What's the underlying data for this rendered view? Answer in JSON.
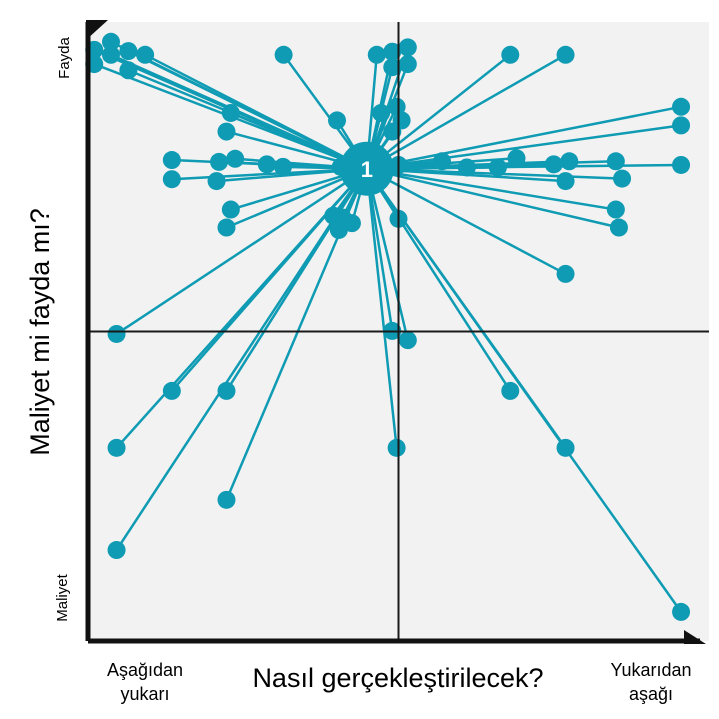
{
  "chart_data": {
    "type": "scatter",
    "title": "",
    "xlabel": "Nasıl gerçekleştirilecek?",
    "ylabel": "Maliyet mi fayda mı?",
    "x_axis_ends": {
      "low": [
        "Aşağıdan",
        "yukarı"
      ],
      "high": [
        "Yukarıdan",
        "aşağı"
      ]
    },
    "y_axis_ends": {
      "low": "Maliyet",
      "high": "Fayda"
    },
    "xlim": [
      0,
      100
    ],
    "ylim": [
      0,
      100
    ],
    "grid": false,
    "quadrant_lines": {
      "x": 50,
      "y": 50
    },
    "hub": {
      "label": "1",
      "x": 44.9,
      "y": 76.3
    },
    "color": "#0e9bb3",
    "plot_background": "#f2f2f2",
    "points": [
      [
        1,
        95.5
      ],
      [
        3.7,
        96.8
      ],
      [
        1,
        93.2
      ],
      [
        3.7,
        94.7
      ],
      [
        6.5,
        95.3
      ],
      [
        6.5,
        92.2
      ],
      [
        9.2,
        94.7
      ],
      [
        31.5,
        94.7
      ],
      [
        46.5,
        94.7
      ],
      [
        49,
        95.2
      ],
      [
        51.5,
        95.9
      ],
      [
        49,
        92.7
      ],
      [
        51.5,
        93.2
      ],
      [
        68,
        94.7
      ],
      [
        76.9,
        94.7
      ],
      [
        23,
        85.3
      ],
      [
        22.3,
        82.3
      ],
      [
        40.1,
        84.1
      ],
      [
        47.2,
        85.3
      ],
      [
        49.7,
        86.3
      ],
      [
        50.5,
        84.1
      ],
      [
        49,
        82.3
      ],
      [
        95.5,
        86.3
      ],
      [
        95.5,
        83.3
      ],
      [
        13.5,
        77.7
      ],
      [
        21.1,
        77.4
      ],
      [
        23.7,
        77.9
      ],
      [
        28.8,
        77
      ],
      [
        31.4,
        76.6
      ],
      [
        13.5,
        74.6
      ],
      [
        20.7,
        74.3
      ],
      [
        40.7,
        76.6
      ],
      [
        50,
        76.9
      ],
      [
        57,
        77.5
      ],
      [
        61,
        76.5
      ],
      [
        66,
        76.5
      ],
      [
        69,
        78
      ],
      [
        75,
        77
      ],
      [
        77.5,
        77.5
      ],
      [
        85,
        77.5
      ],
      [
        76.9,
        74.3
      ],
      [
        86,
        74.7
      ],
      [
        95.5,
        76.9
      ],
      [
        23,
        69.7
      ],
      [
        22.3,
        66.8
      ],
      [
        39.5,
        68.7
      ],
      [
        41,
        68.4
      ],
      [
        42.5,
        67.5
      ],
      [
        40.4,
        66.4
      ],
      [
        50,
        68.2
      ],
      [
        85,
        69.7
      ],
      [
        85.5,
        66.8
      ],
      [
        76.9,
        59.3
      ],
      [
        4.6,
        49.6
      ],
      [
        51.5,
        48.6
      ],
      [
        49,
        50.1
      ],
      [
        13.5,
        40.4
      ],
      [
        22.3,
        40.4
      ],
      [
        68,
        40.4
      ],
      [
        4.6,
        31.2
      ],
      [
        49.7,
        31.2
      ],
      [
        76.9,
        31.2
      ],
      [
        22.3,
        22.8
      ],
      [
        4.6,
        14.7
      ],
      [
        95.5,
        4.7
      ]
    ]
  }
}
